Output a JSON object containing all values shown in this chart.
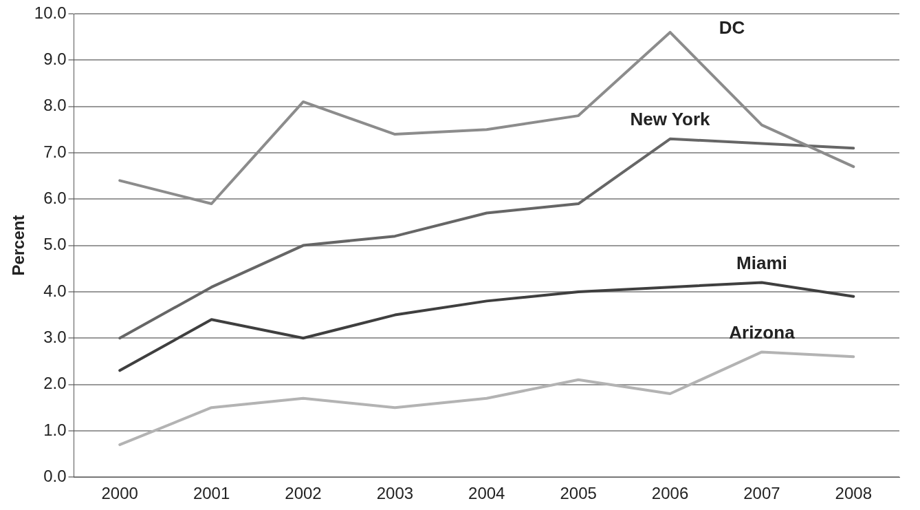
{
  "chart_data": {
    "type": "line",
    "ylabel": "Percent",
    "categories": [
      "2000",
      "2001",
      "2002",
      "2003",
      "2004",
      "2005",
      "2006",
      "2007",
      "2008"
    ],
    "series": [
      {
        "name": "DC",
        "color": "#8c8c8c",
        "values": [
          6.4,
          5.9,
          8.1,
          7.4,
          7.5,
          7.8,
          9.6,
          7.6,
          6.7
        ]
      },
      {
        "name": "New York",
        "color": "#666666",
        "values": [
          3.0,
          4.1,
          5.0,
          5.2,
          5.7,
          5.9,
          7.3,
          7.2,
          7.1
        ]
      },
      {
        "name": "Miami",
        "color": "#3f3f3f",
        "values": [
          2.3,
          3.4,
          3.0,
          3.5,
          3.8,
          4.0,
          4.1,
          4.2,
          3.9
        ]
      },
      {
        "name": "Arizona",
        "color": "#b3b3b3",
        "values": [
          0.7,
          1.5,
          1.7,
          1.5,
          1.7,
          2.1,
          1.8,
          2.7,
          2.6
        ]
      }
    ],
    "ylim": [
      0,
      10
    ],
    "yticks": [
      {
        "value": 0,
        "label": "0.0"
      },
      {
        "value": 1,
        "label": "1.0"
      },
      {
        "value": 2,
        "label": "2.0"
      },
      {
        "value": 3,
        "label": "3.0"
      },
      {
        "value": 4,
        "label": "4.0"
      },
      {
        "value": 5,
        "label": "5.0"
      },
      {
        "value": 6,
        "label": "6.0"
      },
      {
        "value": 7,
        "label": "7.0"
      },
      {
        "value": 8,
        "label": "8.0"
      },
      {
        "value": 9,
        "label": "9.0"
      },
      {
        "value": 10,
        "label": "10.0"
      }
    ],
    "grid": "y",
    "legend": false,
    "marker": "none",
    "line_style": "solid"
  }
}
